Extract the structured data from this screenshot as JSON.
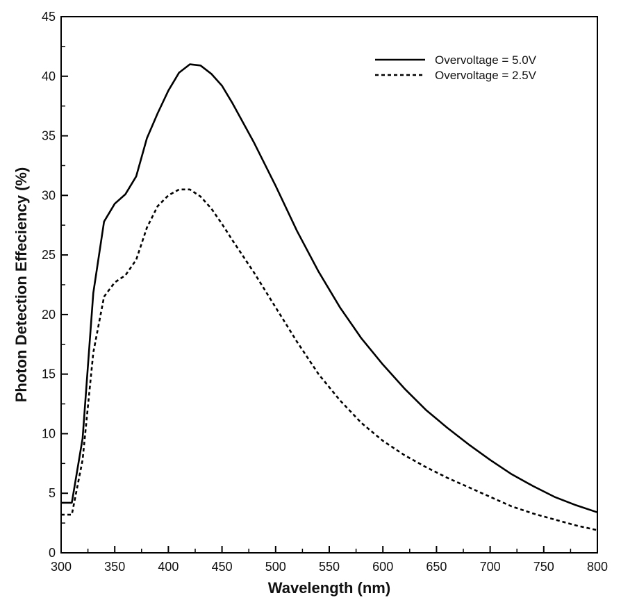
{
  "chart_data": {
    "type": "line",
    "xlabel": "Wavelength (nm)",
    "ylabel": "Photon Detection Effeciency (%)",
    "xlim": [
      300,
      800
    ],
    "ylim": [
      0,
      45
    ],
    "xticks": [
      300,
      350,
      400,
      450,
      500,
      550,
      600,
      650,
      700,
      750,
      800
    ],
    "yticks": [
      0,
      5,
      10,
      15,
      20,
      25,
      30,
      35,
      40,
      45
    ],
    "grid": false,
    "legend_position": "top-right",
    "series": [
      {
        "name": "Overvoltage = 5.0V",
        "style": "solid",
        "color": "#000000",
        "x": [
          300,
          310,
          320,
          330,
          340,
          350,
          360,
          370,
          380,
          390,
          400,
          410,
          420,
          430,
          440,
          450,
          460,
          480,
          500,
          520,
          540,
          560,
          580,
          600,
          620,
          640,
          660,
          680,
          700,
          720,
          740,
          760,
          780,
          800
        ],
        "y": [
          4.2,
          4.2,
          9.6,
          21.8,
          27.8,
          29.3,
          30.1,
          31.6,
          34.8,
          36.9,
          38.8,
          40.3,
          41.0,
          40.9,
          40.2,
          39.2,
          37.7,
          34.4,
          30.8,
          27.0,
          23.6,
          20.6,
          18.0,
          15.8,
          13.8,
          12.0,
          10.5,
          9.1,
          7.8,
          6.6,
          5.6,
          4.7,
          4.0,
          3.4
        ]
      },
      {
        "name": "Overvoltage = 2.5V",
        "style": "dashed",
        "color": "#000000",
        "x": [
          300,
          310,
          320,
          330,
          340,
          350,
          360,
          370,
          380,
          390,
          400,
          410,
          420,
          430,
          440,
          450,
          460,
          480,
          500,
          520,
          540,
          560,
          580,
          600,
          620,
          640,
          660,
          680,
          700,
          720,
          740,
          760,
          780,
          800
        ],
        "y": [
          3.2,
          3.2,
          7.8,
          16.8,
          21.5,
          22.7,
          23.3,
          24.6,
          27.3,
          29.1,
          30.0,
          30.5,
          30.5,
          29.9,
          28.9,
          27.6,
          26.2,
          23.5,
          20.6,
          17.7,
          15.0,
          12.8,
          10.9,
          9.4,
          8.2,
          7.2,
          6.3,
          5.5,
          4.7,
          3.9,
          3.3,
          2.8,
          2.3,
          1.9
        ]
      }
    ]
  }
}
